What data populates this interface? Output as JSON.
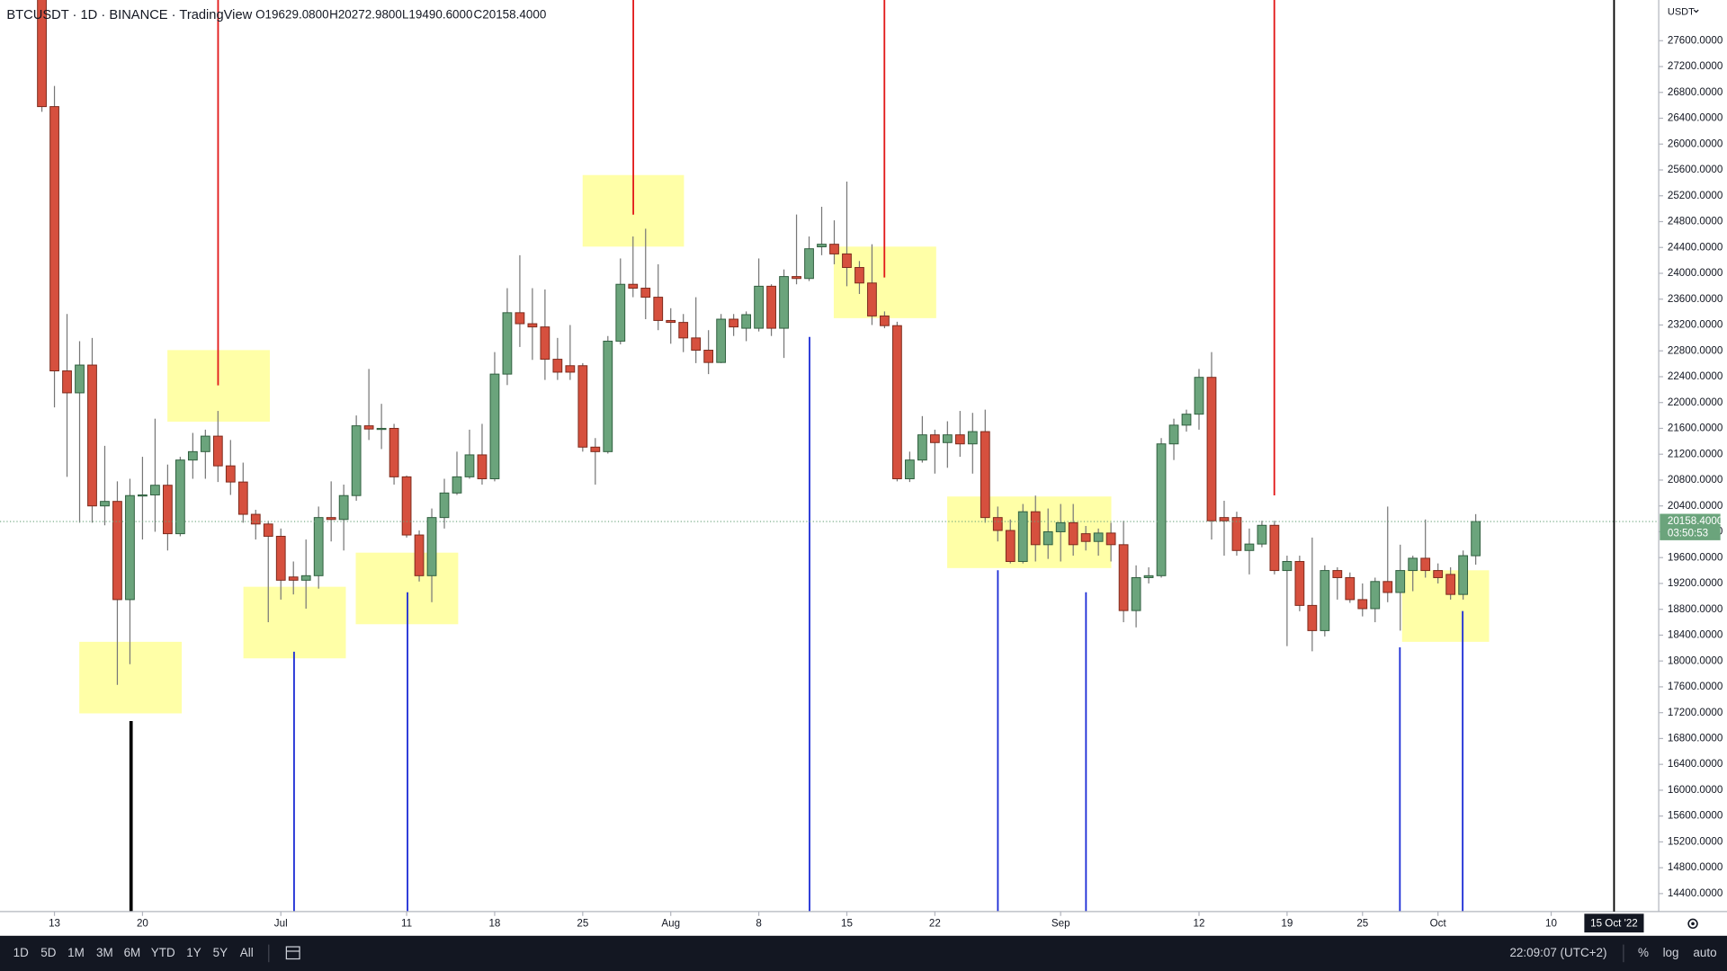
{
  "chart_data": {
    "type": "candlestick",
    "title": "BTCUSDT · 1D · BINANCE · TradingView",
    "ohlc_labels": [
      "O19629.0800",
      "H20272.9800",
      "L19490.6000",
      "C20158.4000"
    ],
    "currency": "USDT",
    "up_color": "#6ba47c",
    "down_color": "#d6503e",
    "open": [
      28400,
      26580,
      22490,
      22150,
      22580,
      20400,
      20470,
      18950,
      20560,
      20570,
      20720,
      19970,
      21110,
      21240,
      21480,
      21020,
      20770,
      20270,
      20120,
      19930,
      19300,
      19250,
      19320,
      20220,
      20190,
      20560,
      21640,
      21590,
      21600,
      20850,
      19950,
      19320,
      20220,
      20600,
      20850,
      21190,
      20820,
      22440,
      23390,
      23220,
      23170,
      22670,
      22570,
      22570,
      21310,
      21240,
      22950,
      23830,
      23770,
      23630,
      23270,
      23240,
      23000,
      22810,
      22620,
      23290,
      23150,
      23150,
      23800,
      23150,
      23950,
      23920,
      24410,
      24450,
      24300,
      24090,
      23850,
      23340,
      23190,
      20820,
      21110,
      21500,
      21380,
      21500,
      21360,
      21550,
      20220,
      20020,
      19540,
      20310,
      19800,
      20000,
      20140,
      19970,
      19850,
      19980,
      19800,
      18780,
      19290,
      19320,
      21360,
      21650,
      21820,
      22390,
      20220,
      20220,
      19710,
      19810,
      20100,
      19400,
      19540,
      18860,
      18470,
      19400,
      19290,
      18950,
      18810,
      19230,
      19060,
      19400,
      19590,
      19400,
      19340,
      19030,
      19629.08
    ],
    "high": [
      28550,
      26900,
      23370,
      22950,
      23000,
      21330,
      20780,
      20820,
      21160,
      21750,
      21040,
      21160,
      21530,
      21580,
      21870,
      21420,
      21070,
      20340,
      20170,
      20050,
      19540,
      19880,
      20390,
      20780,
      20730,
      21800,
      22520,
      21980,
      21670,
      20870,
      20020,
      20360,
      20820,
      21240,
      21580,
      21670,
      22780,
      23770,
      24280,
      23770,
      23750,
      23000,
      23200,
      22610,
      21450,
      23030,
      24230,
      24570,
      24690,
      24140,
      23460,
      23370,
      23630,
      23120,
      23370,
      23370,
      23410,
      24230,
      23830,
      24060,
      24910,
      24570,
      25030,
      24820,
      25420,
      24190,
      24450,
      23410,
      23250,
      21240,
      21790,
      21580,
      21710,
      21870,
      21840,
      21890,
      20390,
      20190,
      20430,
      20560,
      20360,
      20430,
      20430,
      20090,
      20050,
      20140,
      20170,
      19480,
      19450,
      21450,
      21750,
      21890,
      22520,
      22780,
      20480,
      20310,
      20050,
      20170,
      20170,
      19630,
      19630,
      19910,
      19480,
      19450,
      19370,
      19200,
      19290,
      20390,
      19800,
      19630,
      20190,
      19510,
      19450,
      19710,
      20272.98
    ],
    "low": [
      26500,
      21925,
      20850,
      20140,
      20140,
      20100,
      17630,
      17950,
      19880,
      20000,
      19710,
      19930,
      20820,
      20820,
      20770,
      20570,
      20140,
      19880,
      18600,
      18950,
      19030,
      18810,
      19120,
      19850,
      19710,
      20480,
      21420,
      21280,
      20730,
      19910,
      19230,
      18910,
      20050,
      20570,
      20820,
      20730,
      20780,
      22270,
      22860,
      22660,
      22350,
      22350,
      22350,
      21240,
      20730,
      21210,
      22900,
      23630,
      23290,
      23120,
      22910,
      22780,
      22610,
      22440,
      22610,
      23030,
      22950,
      23100,
      23030,
      22690,
      23830,
      23880,
      24280,
      24140,
      23800,
      23680,
      23200,
      23150,
      20780,
      20770,
      21070,
      20900,
      20990,
      21160,
      20900,
      20140,
      19850,
      19510,
      19510,
      19540,
      19580,
      19540,
      19630,
      19710,
      19630,
      19540,
      18600,
      18520,
      19200,
      19290,
      21110,
      21550,
      21580,
      19880,
      19630,
      19630,
      19340,
      19760,
      19340,
      18230,
      18770,
      18150,
      18380,
      18950,
      18900,
      18690,
      18600,
      18910,
      18470,
      19080,
      19290,
      19200,
      18950,
      18950,
      19490.6
    ],
    "close": [
      26580,
      22490,
      22150,
      22580,
      20400,
      20470,
      18950,
      20560,
      20570,
      20720,
      19970,
      21110,
      21240,
      21480,
      21020,
      20770,
      20270,
      20120,
      19930,
      19250,
      19250,
      19320,
      20220,
      20190,
      20560,
      21640,
      21590,
      21600,
      20850,
      19950,
      19320,
      20220,
      20600,
      20850,
      21190,
      20820,
      22440,
      23390,
      23220,
      23170,
      22670,
      22470,
      22470,
      21310,
      21240,
      22950,
      23830,
      23770,
      23630,
      23270,
      23240,
      23000,
      22810,
      22620,
      23290,
      23170,
      23360,
      23800,
      23150,
      23950,
      23920,
      24380,
      24450,
      24300,
      24090,
      23850,
      23340,
      23190,
      20820,
      21110,
      21500,
      21380,
      21500,
      21360,
      21550,
      20220,
      20020,
      19540,
      20310,
      19800,
      20000,
      20140,
      19800,
      19850,
      19980,
      19800,
      18780,
      19290,
      19320,
      21360,
      21650,
      21820,
      22390,
      20170,
      20170,
      19710,
      19810,
      20100,
      19400,
      19540,
      18860,
      18470,
      19400,
      19290,
      18950,
      18810,
      19230,
      19060,
      19400,
      19590,
      19400,
      19290,
      19030,
      19630,
      20158.4
    ],
    "last_price_label": "20158.4000",
    "countdown": "03:50:53",
    "xlim": [
      -3.33,
      128.55
    ],
    "xticks": [
      {
        "value": 1,
        "label": "13"
      },
      {
        "value": 8,
        "label": "20"
      },
      {
        "value": 19,
        "label": "Jul"
      },
      {
        "value": 29,
        "label": "11"
      },
      {
        "value": 36,
        "label": "18"
      },
      {
        "value": 43,
        "label": "25"
      },
      {
        "value": 50,
        "label": "Aug"
      },
      {
        "value": 57,
        "label": "8"
      },
      {
        "value": 64,
        "label": "15"
      },
      {
        "value": 71,
        "label": "22"
      },
      {
        "value": 81,
        "label": "Sep"
      },
      {
        "value": 92,
        "label": "12"
      },
      {
        "value": 99,
        "label": "19"
      },
      {
        "value": 105,
        "label": "25"
      },
      {
        "value": 111,
        "label": "Oct"
      },
      {
        "value": 120,
        "label": "10"
      }
    ],
    "cursor": {
      "value": 125,
      "label": "15 Oct '22"
    },
    "ylim": [
      14122,
      28230
    ],
    "yticks": [
      {
        "value": 14400,
        "label": "14400.0000"
      },
      {
        "value": 14800,
        "label": "14800.0000"
      },
      {
        "value": 15200,
        "label": "15200.0000"
      },
      {
        "value": 15600,
        "label": "15600.0000"
      },
      {
        "value": 16000,
        "label": "16000.0000"
      },
      {
        "value": 16400,
        "label": "16400.0000"
      },
      {
        "value": 16800,
        "label": "16800.0000"
      },
      {
        "value": 17200,
        "label": "17200.0000"
      },
      {
        "value": 17600,
        "label": "17600.0000"
      },
      {
        "value": 18000,
        "label": "18000.0000"
      },
      {
        "value": 18400,
        "label": "18400.0000"
      },
      {
        "value": 18800,
        "label": "18800.0000"
      },
      {
        "value": 19200,
        "label": "19200.0000"
      },
      {
        "value": 19600,
        "label": "19600.0000"
      },
      {
        "value": 20000,
        "label": "20000.0000"
      },
      {
        "value": 20400,
        "label": "20400.0000"
      },
      {
        "value": 20800,
        "label": "20800.0000"
      },
      {
        "value": 21200,
        "label": "21200.0000"
      },
      {
        "value": 21600,
        "label": "21600.0000"
      },
      {
        "value": 22000,
        "label": "22000.0000"
      },
      {
        "value": 22400,
        "label": "22400.0000"
      },
      {
        "value": 22800,
        "label": "22800.0000"
      },
      {
        "value": 23200,
        "label": "23200.0000"
      },
      {
        "value": 23600,
        "label": "23600.0000"
      },
      {
        "value": 24000,
        "label": "24000.0000"
      },
      {
        "value": 24400,
        "label": "24400.0000"
      },
      {
        "value": 24800,
        "label": "24800.0000"
      },
      {
        "value": 25200,
        "label": "25200.0000"
      },
      {
        "value": 25600,
        "label": "25600.0000"
      },
      {
        "value": 26000,
        "label": "26000.0000"
      },
      {
        "value": 26400,
        "label": "26400.0000"
      },
      {
        "value": 26800,
        "label": "26800.0000"
      },
      {
        "value": 27200,
        "label": "27200.0000"
      },
      {
        "value": 27600,
        "label": "27600.0000"
      }
    ]
  },
  "toolbar": {
    "ranges": [
      "1D",
      "5D",
      "1M",
      "3M",
      "6M",
      "YTD",
      "1Y",
      "5Y",
      "All"
    ],
    "time": "22:09:07 (UTC+2)",
    "options": [
      "%",
      "log",
      "auto"
    ]
  }
}
